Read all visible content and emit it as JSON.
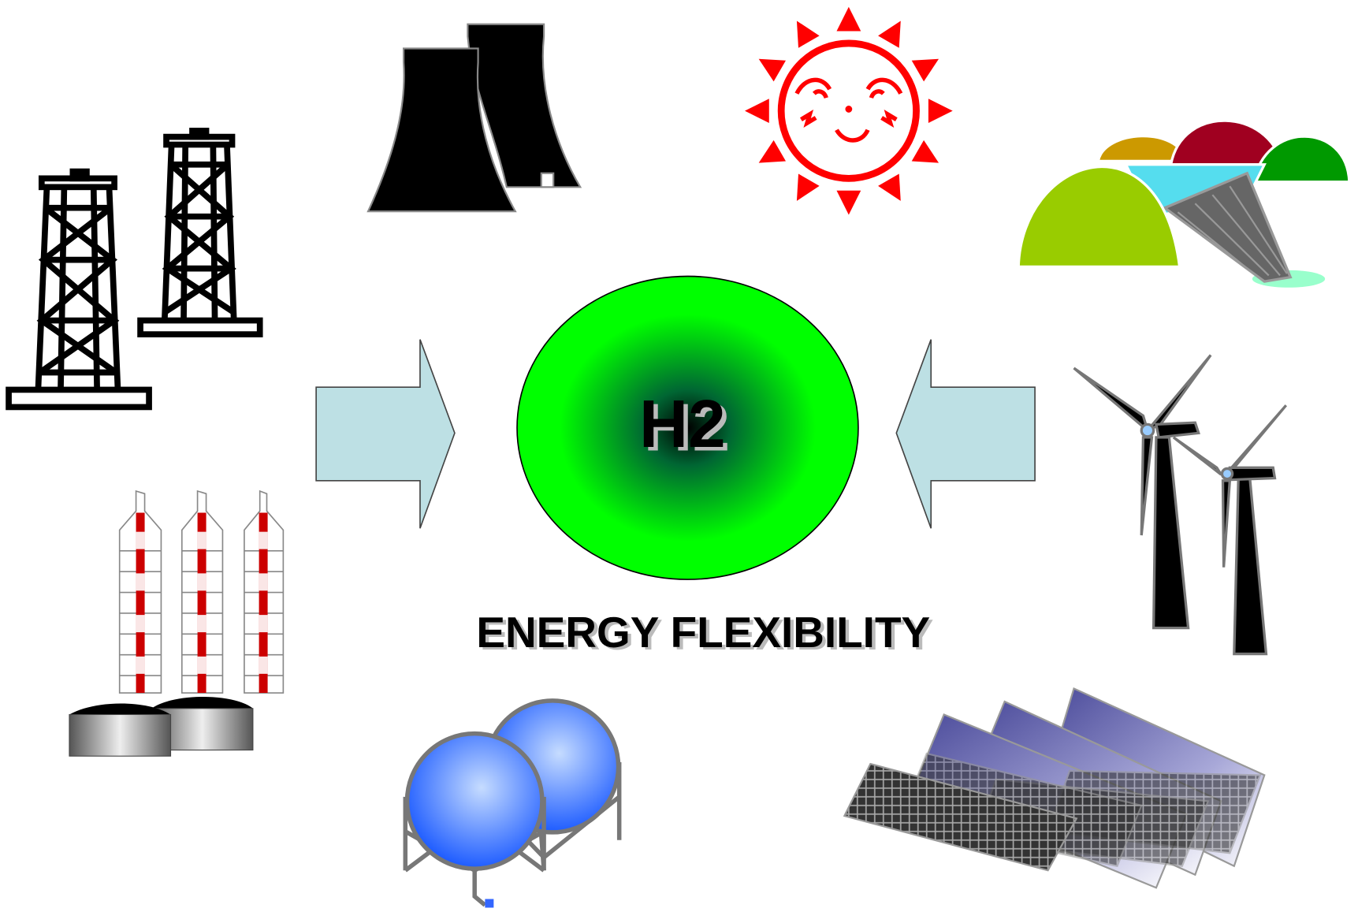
{
  "center": {
    "label": "H2"
  },
  "caption": "ENERGY FLEXIBILITY"
}
